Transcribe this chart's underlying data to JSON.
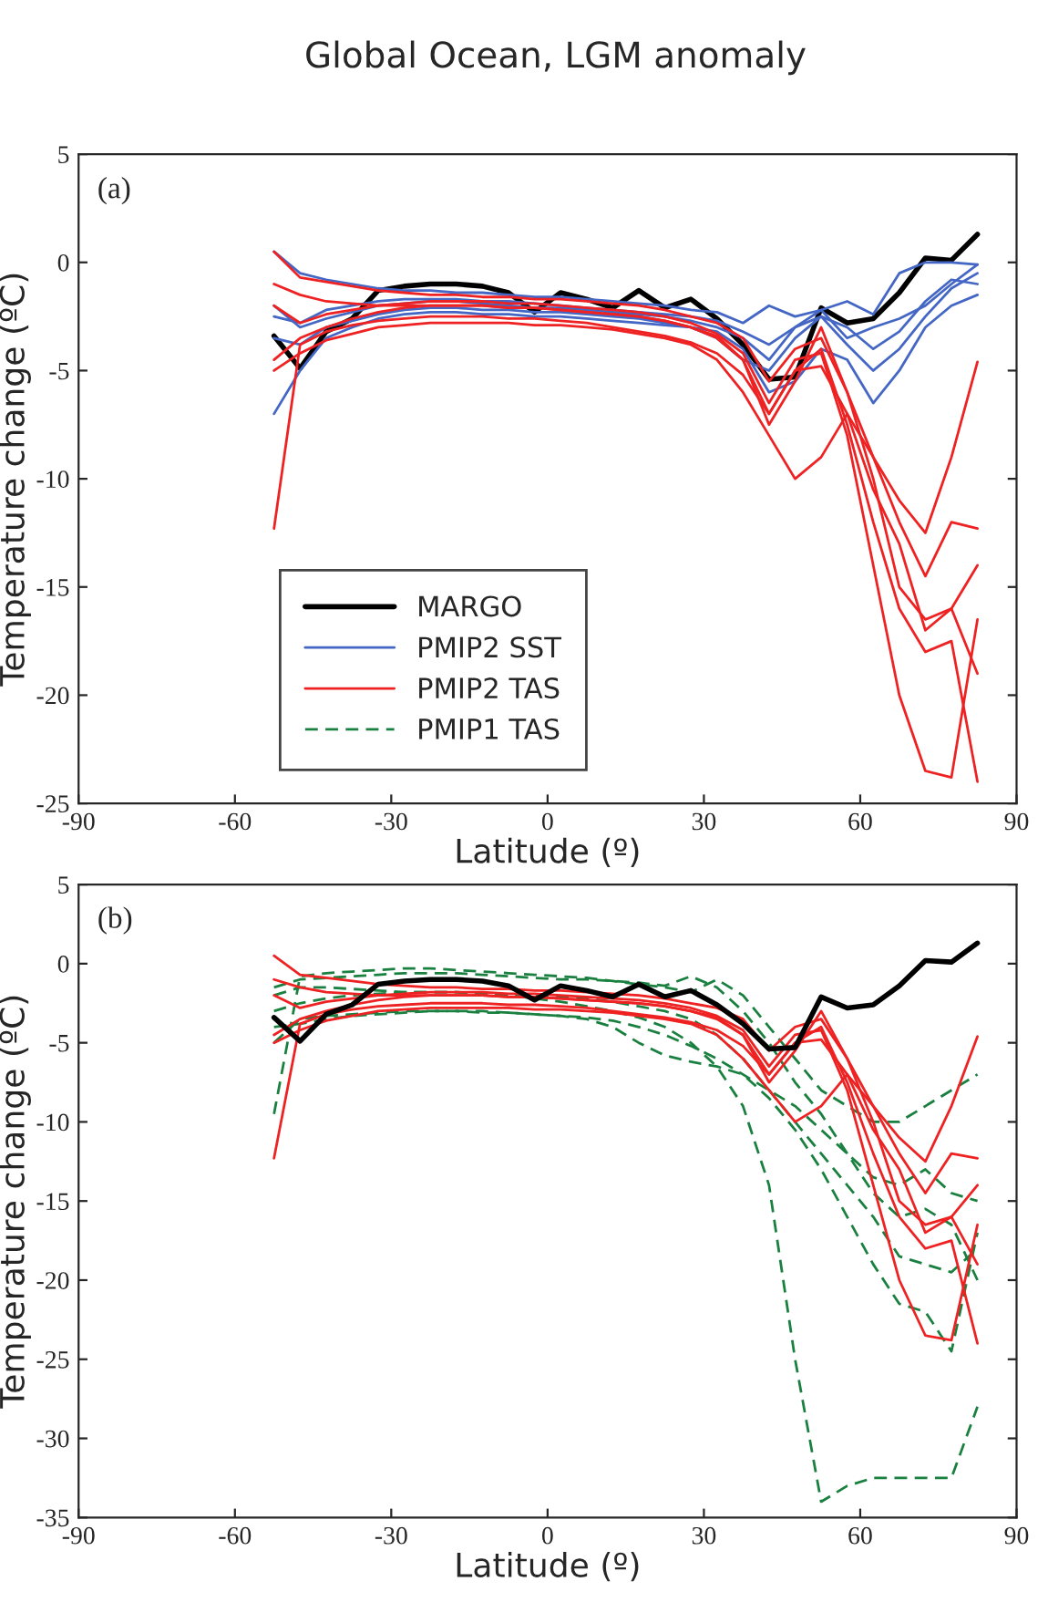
{
  "chart_data": [
    {
      "type": "line",
      "title": "Global Ocean, LGM anomaly",
      "xlabel": "Latitude (º)",
      "ylabel": "Temperature change (ºC)",
      "annotations": [
        "(a)"
      ],
      "x": [
        -52.5,
        -47.5,
        -42.5,
        -37.5,
        -32.5,
        -27.5,
        -22.5,
        -17.5,
        -12.5,
        -7.5,
        -2.5,
        2.5,
        7.5,
        12.5,
        17.5,
        22.5,
        27.5,
        32.5,
        37.5,
        42.5,
        47.5,
        52.5,
        57.5,
        62.5,
        67.5,
        72.5,
        77.5,
        82.5
      ],
      "xlim": [
        -90,
        90
      ],
      "xticks": [
        -90,
        -60,
        -30,
        0,
        30,
        60,
        90
      ],
      "ylim": [
        -25,
        5
      ],
      "yticks": [
        -25,
        -20,
        -15,
        -10,
        -5,
        0,
        5
      ],
      "grid": false,
      "legend": "lower left",
      "series": [
        {
          "name": "MARGO",
          "color": "#000000",
          "line_style": "solid",
          "values": [
            -3.4,
            -4.9,
            -3.2,
            -2.6,
            -1.3,
            -1.1,
            -1.0,
            -1.0,
            -1.1,
            -1.4,
            -2.3,
            -1.4,
            -1.7,
            -2.1,
            -1.3,
            -2.1,
            -1.7,
            -2.6,
            -3.8,
            -5.4,
            -5.3,
            -2.1,
            -2.8,
            -2.6,
            -1.4,
            0.2,
            0.1,
            1.3
          ]
        },
        {
          "name": "PMIP2 SST",
          "color": "#4466c4",
          "line_style": "solid",
          "values": [
            0.5,
            -0.5,
            -0.8,
            -1.0,
            -1.2,
            -1.3,
            -1.3,
            -1.4,
            -1.4,
            -1.5,
            -1.6,
            -1.6,
            -1.7,
            -1.8,
            -1.9,
            -2.0,
            -2.2,
            -2.3,
            -2.8,
            -2.0,
            -2.5,
            -2.2,
            -1.8,
            -2.4,
            -0.5,
            0.0,
            0.0,
            -0.1
          ]
        },
        {
          "color": "#4466c4",
          "line_style": "solid",
          "values": [
            -2.0,
            -3.0,
            -2.6,
            -2.3,
            -2.0,
            -1.9,
            -1.8,
            -1.8,
            -1.9,
            -2.0,
            -2.1,
            -2.1,
            -2.2,
            -2.3,
            -2.4,
            -2.5,
            -2.7,
            -3.0,
            -3.5,
            -4.5,
            -3.0,
            -2.2,
            -3.5,
            -3.0,
            -2.6,
            -2.0,
            -1.0,
            -0.1
          ]
        },
        {
          "color": "#4466c4",
          "line_style": "solid",
          "values": [
            -7.0,
            -5.0,
            -3.5,
            -3.0,
            -2.6,
            -2.4,
            -2.3,
            -2.3,
            -2.4,
            -2.4,
            -2.5,
            -2.5,
            -2.6,
            -2.7,
            -2.8,
            -2.9,
            -3.0,
            -3.2,
            -4.0,
            -6.0,
            -5.5,
            -4.0,
            -4.5,
            -6.5,
            -5.0,
            -3.0,
            -2.0,
            -1.5
          ]
        },
        {
          "color": "#4466c4",
          "line_style": "solid",
          "values": [
            -3.5,
            -3.8,
            -3.0,
            -2.7,
            -2.4,
            -2.2,
            -2.1,
            -2.1,
            -2.2,
            -2.2,
            -2.3,
            -2.3,
            -2.4,
            -2.5,
            -2.6,
            -2.8,
            -3.0,
            -3.5,
            -4.5,
            -5.0,
            -3.5,
            -2.5,
            -3.0,
            -4.0,
            -3.2,
            -1.8,
            -0.8,
            -1.0
          ]
        },
        {
          "color": "#4466c4",
          "line_style": "solid",
          "values": [
            -2.5,
            -2.8,
            -2.2,
            -2.0,
            -1.8,
            -1.7,
            -1.7,
            -1.7,
            -1.8,
            -1.8,
            -1.9,
            -2.0,
            -2.1,
            -2.2,
            -2.3,
            -2.4,
            -2.5,
            -2.7,
            -3.2,
            -3.8,
            -3.0,
            -2.5,
            -3.8,
            -5.0,
            -4.0,
            -2.5,
            -1.2,
            -0.5
          ]
        },
        {
          "name": "PMIP2 TAS",
          "color": "#ee2222",
          "line_style": "solid",
          "values": [
            -12.3,
            -3.8,
            -3.2,
            -2.9,
            -2.7,
            -2.6,
            -2.5,
            -2.5,
            -2.5,
            -2.6,
            -2.6,
            -2.7,
            -2.8,
            -3.0,
            -3.2,
            -3.4,
            -3.7,
            -4.2,
            -5.2,
            -7.0,
            -5.0,
            -4.8,
            -7.0,
            -9.0,
            -11.0,
            -12.5,
            -9.0,
            -4.6
          ]
        },
        {
          "color": "#ee2222",
          "line_style": "solid",
          "values": [
            0.5,
            -0.7,
            -0.9,
            -1.1,
            -1.3,
            -1.4,
            -1.5,
            -1.5,
            -1.6,
            -1.6,
            -1.7,
            -1.7,
            -1.8,
            -1.9,
            -2.0,
            -2.2,
            -2.5,
            -2.8,
            -3.5,
            -5.5,
            -4.0,
            -3.5,
            -6.0,
            -9.0,
            -12.0,
            -14.5,
            -12.0,
            -12.3
          ]
        },
        {
          "color": "#ee2222",
          "line_style": "solid",
          "values": [
            -4.5,
            -3.5,
            -3.0,
            -2.6,
            -2.3,
            -2.1,
            -2.0,
            -2.0,
            -2.0,
            -2.1,
            -2.1,
            -2.2,
            -2.3,
            -2.4,
            -2.5,
            -2.7,
            -3.0,
            -3.5,
            -4.5,
            -7.5,
            -5.5,
            -3.0,
            -6.0,
            -10.0,
            -15.0,
            -16.5,
            -16.0,
            -14.0
          ]
        },
        {
          "color": "#ee2222",
          "line_style": "solid",
          "values": [
            -5.0,
            -4.2,
            -3.6,
            -3.3,
            -3.0,
            -2.9,
            -2.8,
            -2.8,
            -2.8,
            -2.8,
            -2.9,
            -2.9,
            -3.0,
            -3.1,
            -3.3,
            -3.5,
            -3.8,
            -4.5,
            -6.0,
            -8.0,
            -10.0,
            -9.0,
            -7.0,
            -10.5,
            -13.0,
            -17.0,
            -16.0,
            -19.0
          ]
        },
        {
          "color": "#ee2222",
          "line_style": "solid",
          "values": [
            -2.0,
            -2.8,
            -2.4,
            -2.2,
            -2.0,
            -1.9,
            -1.8,
            -1.8,
            -1.8,
            -1.9,
            -1.9,
            -2.0,
            -2.1,
            -2.2,
            -2.3,
            -2.5,
            -2.8,
            -3.3,
            -4.2,
            -6.5,
            -4.5,
            -4.2,
            -8.0,
            -14.0,
            -20.0,
            -23.5,
            -23.8,
            -16.5
          ]
        },
        {
          "color": "#ee2222",
          "line_style": "solid",
          "values": [
            -1.0,
            -1.5,
            -1.8,
            -1.9,
            -2.0,
            -2.0,
            -2.0,
            -2.0,
            -2.0,
            -2.1,
            -2.1,
            -2.2,
            -2.3,
            -2.4,
            -2.5,
            -2.7,
            -3.0,
            -3.4,
            -4.5,
            -7.0,
            -5.0,
            -4.0,
            -7.5,
            -12.0,
            -16.0,
            -18.0,
            -17.5,
            -24.0
          ]
        },
        {
          "name": "PMIP1 TAS",
          "color": "#1a8040",
          "line_style": "dashed",
          "values": [
            null,
            null,
            null,
            null,
            null,
            null,
            null,
            null,
            null,
            null,
            null,
            null,
            null,
            null,
            null,
            null,
            null,
            null,
            null,
            null,
            null,
            null,
            null,
            null,
            null,
            null,
            null,
            null
          ]
        }
      ]
    },
    {
      "type": "line",
      "xlabel": "Latitude (º)",
      "ylabel": "Temperature change (ºC)",
      "annotations": [
        "(b)"
      ],
      "x": [
        -52.5,
        -47.5,
        -42.5,
        -37.5,
        -32.5,
        -27.5,
        -22.5,
        -17.5,
        -12.5,
        -7.5,
        -2.5,
        2.5,
        7.5,
        12.5,
        17.5,
        22.5,
        27.5,
        32.5,
        37.5,
        42.5,
        47.5,
        52.5,
        57.5,
        62.5,
        67.5,
        72.5,
        77.5,
        82.5
      ],
      "xlim": [
        -90,
        90
      ],
      "xticks": [
        -90,
        -60,
        -30,
        0,
        30,
        60,
        90
      ],
      "ylim": [
        -35,
        5
      ],
      "yticks": [
        -35,
        -30,
        -25,
        -20,
        -15,
        -10,
        -5,
        0,
        5
      ],
      "grid": false,
      "series": [
        {
          "color": "#1a8040",
          "line_style": "dashed",
          "values": [
            -9.5,
            -0.8,
            -0.6,
            -0.5,
            -0.4,
            -0.3,
            -0.3,
            -0.4,
            -0.5,
            -0.6,
            -0.7,
            -0.8,
            -0.9,
            -1.1,
            -1.3,
            -1.5,
            -1.8,
            -1.0,
            -2.0,
            -4.0,
            -6.0,
            -8.0,
            -9.0,
            -10.0,
            -10.0,
            -9.0,
            -8.0,
            -7.0
          ]
        },
        {
          "color": "#1a8040",
          "line_style": "dashed",
          "values": [
            -3.0,
            -2.5,
            -2.2,
            -2.0,
            -1.9,
            -1.8,
            -1.8,
            -1.8,
            -1.9,
            -2.0,
            -2.2,
            -2.4,
            -2.7,
            -3.0,
            -3.4,
            -4.0,
            -5.0,
            -6.5,
            -9.0,
            -14.0,
            -25.0,
            -34.0,
            -33.0,
            -32.5,
            -32.5,
            -32.5,
            -32.5,
            -28.0
          ]
        },
        {
          "color": "#1a8040",
          "line_style": "dashed",
          "values": [
            -4.0,
            -3.8,
            -3.5,
            -3.3,
            -3.2,
            -3.1,
            -3.0,
            -3.0,
            -3.0,
            -3.1,
            -3.2,
            -3.3,
            -3.5,
            -4.0,
            -5.0,
            -5.8,
            -6.2,
            -6.5,
            -7.0,
            -8.5,
            -10.5,
            -13.0,
            -16.0,
            -19.0,
            -21.5,
            -22.0,
            -24.5,
            -17.0
          ]
        },
        {
          "color": "#1a8040",
          "line_style": "dashed",
          "values": [
            -2.0,
            -1.5,
            -1.5,
            -1.6,
            -1.7,
            -1.8,
            -1.8,
            -1.8,
            -1.9,
            -2.0,
            -2.0,
            -2.1,
            -2.2,
            -2.4,
            -2.7,
            -3.0,
            -3.5,
            -4.5,
            -6.0,
            -8.0,
            -10.0,
            -12.0,
            -14.0,
            -16.0,
            -18.5,
            -19.0,
            -19.5,
            -18.0
          ]
        },
        {
          "color": "#1a8040",
          "line_style": "dashed",
          "values": [
            -5.0,
            -3.5,
            -3.3,
            -3.2,
            -3.1,
            -3.0,
            -3.0,
            -3.0,
            -3.1,
            -3.1,
            -3.2,
            -3.3,
            -3.4,
            -3.6,
            -4.0,
            -4.5,
            -5.2,
            -6.0,
            -7.0,
            -8.0,
            -9.0,
            -10.5,
            -12.0,
            -13.5,
            -14.0,
            -13.0,
            -14.5,
            -15.0
          ]
        },
        {
          "color": "#1a8040",
          "line_style": "dashed",
          "values": [
            -1.5,
            -1.0,
            -0.9,
            -0.8,
            -0.7,
            -0.6,
            -0.6,
            -0.6,
            -0.7,
            -0.8,
            -0.9,
            -1.0,
            -1.0,
            -1.1,
            -1.2,
            -1.4,
            -0.8,
            -1.5,
            -3.0,
            -5.0,
            -7.5,
            -9.5,
            -12.0,
            -14.5,
            -16.0,
            -15.5,
            -16.5,
            -20.0
          ]
        },
        {
          "color": "#ee2222",
          "line_style": "solid",
          "values": [
            -12.3,
            -3.8,
            -3.2,
            -2.9,
            -2.7,
            -2.6,
            -2.5,
            -2.5,
            -2.5,
            -2.6,
            -2.6,
            -2.7,
            -2.8,
            -3.0,
            -3.2,
            -3.4,
            -3.7,
            -4.2,
            -5.2,
            -7.0,
            -5.0,
            -4.8,
            -7.0,
            -9.0,
            -11.0,
            -12.5,
            -9.0,
            -4.6
          ]
        },
        {
          "color": "#ee2222",
          "line_style": "solid",
          "values": [
            0.5,
            -0.7,
            -0.9,
            -1.1,
            -1.3,
            -1.4,
            -1.5,
            -1.5,
            -1.6,
            -1.6,
            -1.7,
            -1.7,
            -1.8,
            -1.9,
            -2.0,
            -2.2,
            -2.5,
            -2.8,
            -3.5,
            -5.5,
            -4.0,
            -3.5,
            -6.0,
            -9.0,
            -12.0,
            -14.5,
            -12.0,
            -12.3
          ]
        },
        {
          "color": "#ee2222",
          "line_style": "solid",
          "values": [
            -4.5,
            -3.5,
            -3.0,
            -2.6,
            -2.3,
            -2.1,
            -2.0,
            -2.0,
            -2.0,
            -2.1,
            -2.1,
            -2.2,
            -2.3,
            -2.4,
            -2.5,
            -2.7,
            -3.0,
            -3.5,
            -4.5,
            -7.5,
            -5.5,
            -3.0,
            -6.0,
            -10.0,
            -15.0,
            -16.5,
            -16.0,
            -14.0
          ]
        },
        {
          "color": "#ee2222",
          "line_style": "solid",
          "values": [
            -5.0,
            -4.2,
            -3.6,
            -3.3,
            -3.0,
            -2.9,
            -2.8,
            -2.8,
            -2.8,
            -2.8,
            -2.9,
            -2.9,
            -3.0,
            -3.1,
            -3.3,
            -3.5,
            -3.8,
            -4.5,
            -6.0,
            -8.0,
            -10.0,
            -9.0,
            -7.0,
            -10.5,
            -13.0,
            -17.0,
            -16.0,
            -19.0
          ]
        },
        {
          "color": "#ee2222",
          "line_style": "solid",
          "values": [
            -2.0,
            -2.8,
            -2.4,
            -2.2,
            -2.0,
            -1.9,
            -1.8,
            -1.8,
            -1.8,
            -1.9,
            -1.9,
            -2.0,
            -2.1,
            -2.2,
            -2.3,
            -2.5,
            -2.8,
            -3.3,
            -4.2,
            -6.5,
            -4.5,
            -4.2,
            -8.0,
            -14.0,
            -20.0,
            -23.5,
            -23.8,
            -16.5
          ]
        },
        {
          "color": "#ee2222",
          "line_style": "solid",
          "values": [
            -1.0,
            -1.5,
            -1.8,
            -1.9,
            -2.0,
            -2.0,
            -2.0,
            -2.0,
            -2.0,
            -2.1,
            -2.1,
            -2.2,
            -2.3,
            -2.4,
            -2.5,
            -2.7,
            -3.0,
            -3.4,
            -4.5,
            -7.0,
            -5.0,
            -4.0,
            -7.5,
            -12.0,
            -16.0,
            -18.0,
            -17.5,
            -24.0
          ]
        },
        {
          "color": "#000000",
          "line_style": "solid",
          "values": [
            -3.4,
            -4.9,
            -3.2,
            -2.6,
            -1.3,
            -1.1,
            -1.0,
            -1.0,
            -1.1,
            -1.4,
            -2.3,
            -1.4,
            -1.7,
            -2.1,
            -1.3,
            -2.1,
            -1.7,
            -2.6,
            -3.8,
            -5.4,
            -5.3,
            -2.1,
            -2.8,
            -2.6,
            -1.4,
            0.2,
            0.1,
            1.3
          ]
        }
      ]
    }
  ]
}
